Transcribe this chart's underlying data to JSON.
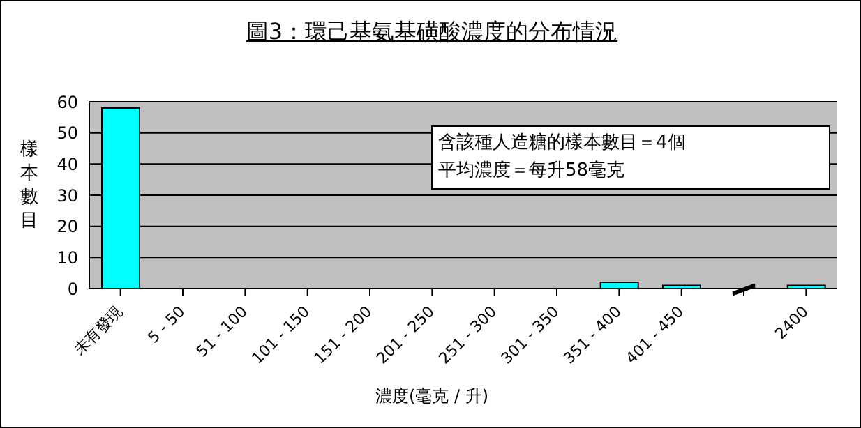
{
  "chart_data": {
    "type": "bar",
    "title": "圖3：環己基氨基磺酸濃度的分布情況",
    "xlabel": "濃度(毫克 / 升)",
    "ylabel": "樣本數目",
    "categories": [
      "未有發現",
      "5 - 50",
      "51 - 100",
      "101 - 150",
      "151 - 200",
      "201 - 250",
      "251 - 300",
      "301 - 350",
      "351 - 400",
      "401 - 450",
      null,
      "2400"
    ],
    "values": [
      58,
      0,
      0,
      0,
      0,
      0,
      0,
      0,
      2,
      1,
      0,
      1
    ],
    "color": "#00ffff",
    "ylim": [
      0,
      60
    ],
    "yticks": [
      0,
      10,
      20,
      30,
      40,
      50,
      60
    ],
    "grid": "y",
    "annotations": [
      "含該種人造糖的樣本數目＝4個",
      "平均濃度＝每升58毫克"
    ]
  }
}
